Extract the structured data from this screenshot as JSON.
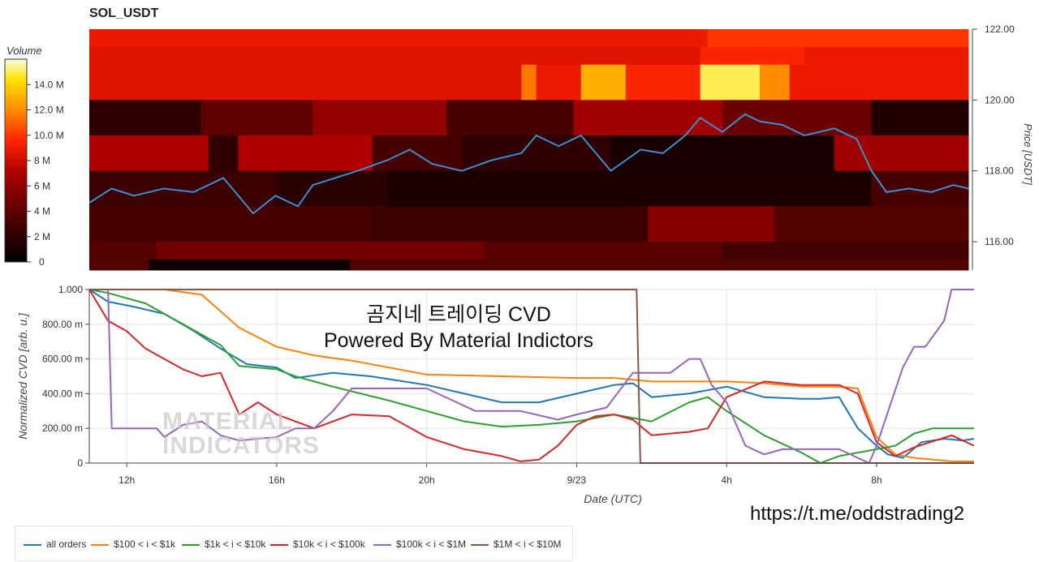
{
  "title": "SOL_USDT",
  "overlay_lines": [
    "곰지네 트레이딩 CVD",
    "Powered By Material Indictors"
  ],
  "watermark": [
    "MATERIAL",
    "INDICATORS"
  ],
  "link_text": "https://t.me/oddstrading2",
  "colors": {
    "all_orders": "#1f77b4",
    "s100_1k": "#ff7f0e",
    "s1k_10k": "#2ca02c",
    "s10k_100k": "#d62728",
    "s100k_1m": "#9467bd",
    "s1m_10m": "#8c564b",
    "price_line": "#3a8fd0"
  },
  "legend": [
    {
      "key": "all_orders",
      "label": "all orders"
    },
    {
      "key": "s100_1k",
      "label": "$100 < i < $1k"
    },
    {
      "key": "s1k_10k",
      "label": "$1k < i < $10k"
    },
    {
      "key": "s10k_100k",
      "label": "$10k < i < $100k"
    },
    {
      "key": "s100k_1m",
      "label": "$100k < i < $1M"
    },
    {
      "key": "s1m_10m",
      "label": "$1M < i < $10M"
    }
  ],
  "chart_data": [
    {
      "type": "heatmap",
      "title": "SOL_USDT",
      "ylabel": "Price [USDT]",
      "ylim": [
        115.2,
        122.0
      ],
      "y_ticks": [
        "116.00",
        "118.00",
        "120.00",
        "122.00"
      ],
      "colorbar_label": "Volume",
      "colorbar_ticks": [
        "0",
        "2 M",
        "4 M",
        "6 M",
        "8 M",
        "10.0 M",
        "12.0 M",
        "14.0 M"
      ],
      "colorbar_max_m": 16,
      "x_range_hours": [
        11.0,
        22.8
      ],
      "bands": [
        {
          "y0": 121.5,
          "y1": 122.0,
          "segments": [
            [
              11.0,
              19.3,
              9
            ],
            [
              19.3,
              22.8,
              10
            ]
          ]
        },
        {
          "y0": 121.0,
          "y1": 121.5,
          "segments": [
            [
              11.0,
              19.2,
              8.5
            ],
            [
              19.2,
              20.6,
              9.5
            ],
            [
              20.6,
              22.8,
              9
            ]
          ]
        },
        {
          "y0": 120.0,
          "y1": 121.0,
          "segments": [
            [
              11.0,
              16.8,
              8.5
            ],
            [
              16.8,
              17.0,
              11.5
            ],
            [
              17.0,
              17.6,
              9
            ],
            [
              17.6,
              18.2,
              13
            ],
            [
              18.2,
              19.2,
              9.5
            ],
            [
              19.2,
              20.0,
              15
            ],
            [
              20.0,
              20.4,
              12
            ],
            [
              20.4,
              22.8,
              9
            ]
          ]
        },
        {
          "y0": 119.0,
          "y1": 120.0,
          "segments": [
            [
              11.0,
              12.5,
              2
            ],
            [
              12.5,
              14.0,
              4
            ],
            [
              14.0,
              15.8,
              6
            ],
            [
              15.8,
              17.5,
              3
            ],
            [
              17.5,
              19.5,
              6.5
            ],
            [
              19.5,
              21.5,
              4.5
            ],
            [
              21.5,
              22.8,
              1.5
            ]
          ]
        },
        {
          "y0": 118.0,
          "y1": 119.0,
          "segments": [
            [
              11.0,
              12.6,
              7
            ],
            [
              12.6,
              13.0,
              2
            ],
            [
              13.0,
              14.8,
              7
            ],
            [
              14.8,
              16.0,
              3
            ],
            [
              16.0,
              18.0,
              2
            ],
            [
              18.0,
              21.0,
              1
            ],
            [
              21.0,
              22.8,
              6.5
            ]
          ]
        },
        {
          "y0": 117.0,
          "y1": 118.0,
          "segments": [
            [
              11.0,
              13.5,
              2.5
            ],
            [
              13.5,
              15.0,
              1.8
            ],
            [
              15.0,
              21.5,
              1.2
            ],
            [
              21.5,
              22.8,
              3
            ]
          ]
        },
        {
          "y0": 116.0,
          "y1": 117.0,
          "segments": [
            [
              11.0,
              14.8,
              3
            ],
            [
              14.8,
              18.5,
              2.5
            ],
            [
              18.5,
              20.2,
              5.5
            ],
            [
              20.2,
              22.8,
              3.5
            ]
          ]
        },
        {
          "y0": 115.5,
          "y1": 116.0,
          "segments": [
            [
              11.0,
              11.9,
              3.5
            ],
            [
              11.9,
              16.3,
              4.8
            ],
            [
              16.3,
              19.5,
              3.8
            ],
            [
              19.5,
              22.8,
              2.8
            ]
          ]
        },
        {
          "y0": 115.2,
          "y1": 115.5,
          "segments": [
            [
              11.0,
              11.8,
              3.5
            ],
            [
              11.8,
              14.5,
              0.6
            ],
            [
              14.5,
              22.8,
              3.5
            ]
          ]
        }
      ],
      "price_series": {
        "name": "price",
        "x": [
          11.0,
          11.3,
          11.6,
          12.0,
          12.4,
          12.8,
          13.2,
          13.5,
          13.8,
          14.0,
          14.3,
          14.6,
          15.0,
          15.3,
          15.6,
          16.0,
          16.4,
          16.8,
          17.0,
          17.3,
          17.6,
          18.0,
          18.4,
          18.7,
          19.0,
          19.2,
          19.5,
          19.8,
          20.0,
          20.3,
          20.6,
          21.0,
          21.3,
          21.5,
          21.7,
          22.0,
          22.3,
          22.6,
          22.8
        ],
        "y": [
          117.1,
          117.5,
          117.3,
          117.5,
          117.4,
          117.8,
          116.8,
          117.3,
          117.0,
          117.6,
          117.8,
          118.0,
          118.3,
          118.6,
          118.2,
          118.0,
          118.3,
          118.5,
          119.0,
          118.7,
          119.0,
          118.0,
          118.6,
          118.5,
          119.0,
          119.5,
          119.1,
          119.6,
          119.4,
          119.3,
          119.0,
          119.2,
          118.9,
          118.0,
          117.4,
          117.5,
          117.4,
          117.6,
          117.5
        ]
      }
    },
    {
      "type": "line",
      "xlabel": "Date (UTC)",
      "ylabel": "Normalized CVD [arb. u.]",
      "ylim": [
        0,
        1.0
      ],
      "y_ticks": [
        "0",
        "200.00 m",
        "400.00 m",
        "600.00 m",
        "800.00 m",
        "1.000"
      ],
      "x_ticks": [
        {
          "x": 12,
          "label": "12h"
        },
        {
          "x": 16,
          "label": "16h"
        },
        {
          "x": 20,
          "label": "20h"
        },
        {
          "x": 24,
          "label": "9/23"
        },
        {
          "x": 28,
          "label": "4h"
        },
        {
          "x": 32,
          "label": "8h"
        }
      ],
      "x_range_hours": [
        11.0,
        34.6
      ],
      "grid": true,
      "series": [
        {
          "key": "all_orders",
          "name": "all orders",
          "x": [
            11.0,
            11.5,
            12.2,
            13.0,
            13.8,
            14.5,
            15.2,
            16.0,
            16.5,
            17.5,
            18.5,
            20.0,
            21.0,
            22.0,
            23.0,
            24.0,
            25.0,
            25.5,
            26.0,
            26.5,
            27.0,
            28.0,
            29.0,
            30.0,
            30.5,
            31.0,
            31.5,
            32.0,
            32.3,
            32.7,
            33.2,
            33.8,
            34.3,
            34.6
          ],
          "y": [
            1.0,
            0.93,
            0.9,
            0.86,
            0.76,
            0.66,
            0.57,
            0.55,
            0.49,
            0.52,
            0.5,
            0.45,
            0.4,
            0.35,
            0.35,
            0.4,
            0.45,
            0.46,
            0.38,
            0.39,
            0.4,
            0.44,
            0.38,
            0.37,
            0.37,
            0.38,
            0.2,
            0.1,
            0.05,
            0.03,
            0.12,
            0.14,
            0.13,
            0.14
          ]
        },
        {
          "key": "s100_1k",
          "name": "$100 < i < $1k",
          "x": [
            11.0,
            13.0,
            14.0,
            15.0,
            16.0,
            17.0,
            18.0,
            20.0,
            22.0,
            24.0,
            25.0,
            26.0,
            27.0,
            28.0,
            29.0,
            30.0,
            31.0,
            31.5,
            32.0,
            32.5,
            33.0,
            34.0,
            34.6
          ],
          "y": [
            1.0,
            1.0,
            0.97,
            0.78,
            0.67,
            0.62,
            0.59,
            0.51,
            0.5,
            0.49,
            0.49,
            0.47,
            0.47,
            0.47,
            0.46,
            0.44,
            0.44,
            0.43,
            0.15,
            0.05,
            0.03,
            0.01,
            0.01
          ]
        },
        {
          "key": "s1k_10k",
          "name": "$1k < i < $10k",
          "x": [
            11.0,
            11.5,
            12.5,
            13.5,
            14.5,
            15.0,
            16.0,
            16.5,
            17.5,
            19.0,
            20.0,
            21.0,
            22.0,
            23.0,
            24.0,
            25.0,
            26.0,
            27.0,
            27.5,
            28.0,
            29.0,
            30.0,
            30.5,
            31.0,
            31.5,
            32.0,
            32.5,
            33.0,
            33.5,
            34.0,
            34.6
          ],
          "y": [
            1.0,
            0.98,
            0.92,
            0.8,
            0.68,
            0.56,
            0.54,
            0.5,
            0.44,
            0.36,
            0.3,
            0.24,
            0.21,
            0.22,
            0.24,
            0.28,
            0.24,
            0.35,
            0.38,
            0.3,
            0.16,
            0.06,
            0.0,
            0.04,
            0.06,
            0.08,
            0.1,
            0.17,
            0.2,
            0.2,
            0.2
          ]
        },
        {
          "key": "s10k_100k",
          "name": "$10k < i < $100k",
          "x": [
            11.0,
            11.5,
            12.0,
            12.5,
            13.0,
            13.5,
            14.0,
            14.5,
            15.0,
            15.5,
            16.0,
            17.0,
            18.0,
            19.0,
            20.0,
            21.0,
            22.0,
            22.5,
            23.0,
            23.5,
            24.0,
            24.5,
            25.0,
            25.5,
            26.0,
            27.0,
            27.5,
            28.0,
            29.0,
            30.0,
            31.0,
            31.5,
            32.0,
            32.5,
            33.0,
            34.0,
            34.6
          ],
          "y": [
            1.0,
            0.82,
            0.76,
            0.66,
            0.6,
            0.54,
            0.5,
            0.52,
            0.28,
            0.35,
            0.28,
            0.2,
            0.28,
            0.27,
            0.15,
            0.08,
            0.04,
            0.01,
            0.02,
            0.1,
            0.22,
            0.27,
            0.28,
            0.25,
            0.16,
            0.18,
            0.2,
            0.38,
            0.47,
            0.45,
            0.45,
            0.4,
            0.12,
            0.04,
            0.09,
            0.16,
            0.1
          ]
        },
        {
          "key": "s100k_1m",
          "name": "$100k < i < $1M",
          "x": [
            11.0,
            11.5,
            11.6,
            12.8,
            13.0,
            13.5,
            14.0,
            14.5,
            15.0,
            16.0,
            16.5,
            17.0,
            17.5,
            18.0,
            20.0,
            21.3,
            22.5,
            23.5,
            24.0,
            24.8,
            25.5,
            26.5,
            27.0,
            27.3,
            27.6,
            28.0,
            28.5,
            29.0,
            29.5,
            31.0,
            31.8,
            32.0,
            32.7,
            33.0,
            33.3,
            33.8,
            34.0,
            34.6
          ],
          "y": [
            1.0,
            1.0,
            0.2,
            0.2,
            0.15,
            0.22,
            0.24,
            0.16,
            0.13,
            0.15,
            0.2,
            0.2,
            0.3,
            0.43,
            0.43,
            0.3,
            0.3,
            0.25,
            0.28,
            0.32,
            0.52,
            0.52,
            0.6,
            0.6,
            0.45,
            0.35,
            0.1,
            0.05,
            0.08,
            0.08,
            0.0,
            0.1,
            0.55,
            0.67,
            0.67,
            0.82,
            1.0,
            1.0
          ]
        },
        {
          "key": "s1m_10m",
          "name": "$1M < i < $10M",
          "x": [
            11.0,
            25.6,
            25.7,
            34.6
          ],
          "y": [
            1.0,
            1.0,
            0.0,
            0.0
          ]
        }
      ]
    }
  ]
}
